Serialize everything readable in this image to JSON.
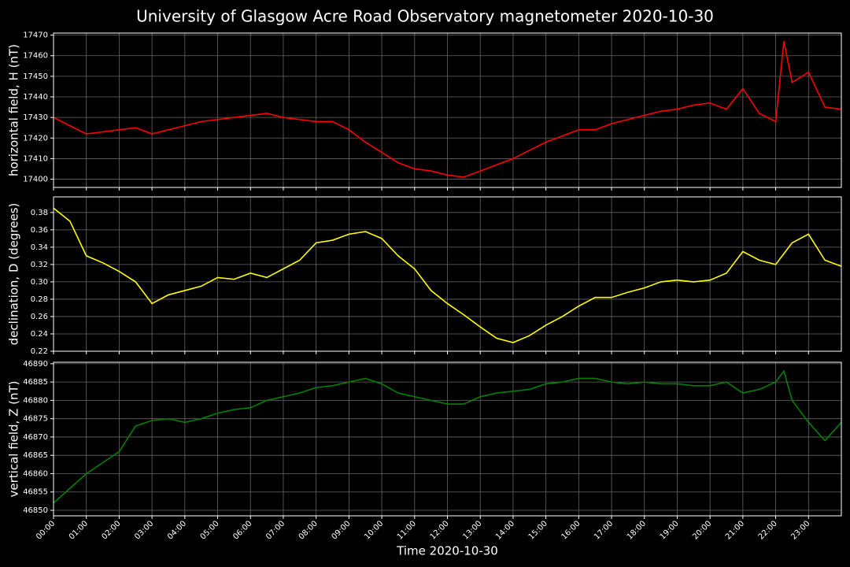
{
  "title": "University of Glasgow Acre Road Observatory magnetometer 2020-10-30",
  "chart_data": [
    {
      "type": "line",
      "ylabel": "horizontal field, H (nT)",
      "color": "#ff0000",
      "grid": true,
      "x": [
        0,
        0.5,
        1,
        1.5,
        2,
        2.5,
        3,
        3.5,
        4,
        4.5,
        5,
        5.5,
        6,
        6.5,
        7,
        7.5,
        8,
        8.5,
        9,
        9.5,
        10,
        10.5,
        11,
        11.5,
        12,
        12.5,
        13,
        13.5,
        14,
        14.5,
        15,
        15.5,
        16,
        16.5,
        17,
        17.5,
        18,
        18.5,
        19,
        19.5,
        20,
        20.5,
        21,
        21.5,
        22,
        22.25,
        22.5,
        23,
        23.5,
        24
      ],
      "values": [
        17430,
        17426,
        17422,
        17423,
        17424,
        17425,
        17422,
        17424,
        17426,
        17428,
        17429,
        17430,
        17431,
        17432,
        17430,
        17429,
        17428,
        17428,
        17424,
        17418,
        17413,
        17408,
        17405,
        17404,
        17402,
        17401,
        17404,
        17407,
        17410,
        17414,
        17418,
        17421,
        17424,
        17424,
        17427,
        17429,
        17431,
        17433,
        17434,
        17436,
        17437,
        17434,
        17444,
        17432,
        17428,
        17467,
        17447,
        17452,
        17435,
        17434
      ],
      "xlim": [
        0,
        24
      ],
      "xticks": [
        0,
        1,
        2,
        3,
        4,
        5,
        6,
        7,
        8,
        9,
        10,
        11,
        12,
        13,
        14,
        15,
        16,
        17,
        18,
        19,
        20,
        21,
        22,
        23
      ],
      "ylim": [
        17396,
        17471
      ],
      "yticks": [
        17400,
        17410,
        17420,
        17430,
        17440,
        17450,
        17460,
        17470
      ]
    },
    {
      "type": "line",
      "ylabel": "declination, D (degrees)",
      "color": "#ffff00",
      "grid": true,
      "x": [
        0,
        0.5,
        1,
        1.5,
        2,
        2.5,
        3,
        3.5,
        4,
        4.5,
        5,
        5.5,
        6,
        6.5,
        7,
        7.5,
        8,
        8.5,
        9,
        9.5,
        10,
        10.5,
        11,
        11.5,
        12,
        12.5,
        13,
        13.5,
        14,
        14.5,
        15,
        15.5,
        16,
        16.5,
        17,
        17.5,
        18,
        18.5,
        19,
        19.5,
        20,
        20.5,
        21,
        21.5,
        22,
        22.5,
        23,
        23.5,
        24
      ],
      "values": [
        0.385,
        0.37,
        0.33,
        0.322,
        0.312,
        0.3,
        0.275,
        0.285,
        0.29,
        0.295,
        0.305,
        0.303,
        0.31,
        0.305,
        0.315,
        0.325,
        0.345,
        0.348,
        0.355,
        0.358,
        0.35,
        0.33,
        0.315,
        0.29,
        0.275,
        0.262,
        0.248,
        0.235,
        0.23,
        0.238,
        0.25,
        0.26,
        0.272,
        0.282,
        0.282,
        0.288,
        0.293,
        0.3,
        0.302,
        0.3,
        0.302,
        0.31,
        0.335,
        0.325,
        0.32,
        0.345,
        0.355,
        0.325,
        0.318
      ],
      "xlim": [
        0,
        24
      ],
      "xticks": [
        0,
        1,
        2,
        3,
        4,
        5,
        6,
        7,
        8,
        9,
        10,
        11,
        12,
        13,
        14,
        15,
        16,
        17,
        18,
        19,
        20,
        21,
        22,
        23
      ],
      "ylim": [
        0.22,
        0.398
      ],
      "yticks": [
        0.22,
        0.24,
        0.26,
        0.28,
        {
          "value": 0.3,
          "label": "0.30"
        },
        0.32,
        0.34,
        0.36,
        0.38
      ]
    },
    {
      "type": "line",
      "ylabel": "vertical field, Z (nT)",
      "xlabel": "Time 2020-10-30",
      "color": "#008000",
      "grid": true,
      "x": [
        0,
        0.5,
        1,
        1.5,
        2,
        2.5,
        3,
        3.5,
        4,
        4.5,
        5,
        5.5,
        6,
        6.5,
        7,
        7.5,
        8,
        8.5,
        9,
        9.5,
        10,
        10.5,
        11,
        11.5,
        12,
        12.5,
        13,
        13.5,
        14,
        14.5,
        15,
        15.5,
        16,
        16.5,
        17,
        17.5,
        18,
        18.5,
        19,
        19.5,
        20,
        20.5,
        21,
        21.5,
        22,
        22.25,
        22.5,
        23,
        23.5,
        24
      ],
      "values": [
        46852,
        46856,
        46860,
        46863,
        46866,
        46873,
        46874.5,
        46875,
        46874,
        46875,
        46876.5,
        46877.5,
        46878,
        46880,
        46881,
        46882,
        46883.5,
        46884,
        46885,
        46886,
        46884.5,
        46882,
        46881,
        46880,
        46879,
        46879,
        46881,
        46882,
        46882.5,
        46883,
        46884.5,
        46885,
        46886,
        46886,
        46885,
        46884.5,
        46885,
        46884.5,
        46884.5,
        46884,
        46884,
        46885,
        46882,
        46883,
        46885,
        46888,
        46880,
        46874,
        46869,
        46874
      ],
      "xlim": [
        0,
        24
      ],
      "xticks": [
        {
          "value": 0,
          "label": "00:00"
        },
        {
          "value": 1,
          "label": "01:00"
        },
        {
          "value": 2,
          "label": "02:00"
        },
        {
          "value": 3,
          "label": "03:00"
        },
        {
          "value": 4,
          "label": "04:00"
        },
        {
          "value": 5,
          "label": "05:00"
        },
        {
          "value": 6,
          "label": "06:00"
        },
        {
          "value": 7,
          "label": "07:00"
        },
        {
          "value": 8,
          "label": "08:00"
        },
        {
          "value": 9,
          "label": "09:00"
        },
        {
          "value": 10,
          "label": "10:00"
        },
        {
          "value": 11,
          "label": "11:00"
        },
        {
          "value": 12,
          "label": "12:00"
        },
        {
          "value": 13,
          "label": "13:00"
        },
        {
          "value": 14,
          "label": "14:00"
        },
        {
          "value": 15,
          "label": "15:00"
        },
        {
          "value": 16,
          "label": "16:00"
        },
        {
          "value": 17,
          "label": "17:00"
        },
        {
          "value": 18,
          "label": "18:00"
        },
        {
          "value": 19,
          "label": "19:00"
        },
        {
          "value": 20,
          "label": "20:00"
        },
        {
          "value": 21,
          "label": "21:00"
        },
        {
          "value": 22,
          "label": "22:00"
        },
        {
          "value": 23,
          "label": "23:00"
        }
      ],
      "ylim": [
        46848.5,
        46890.4
      ],
      "yticks": [
        46850,
        46855,
        46860,
        46865,
        46870,
        46875,
        46880,
        46885,
        46890
      ]
    }
  ]
}
